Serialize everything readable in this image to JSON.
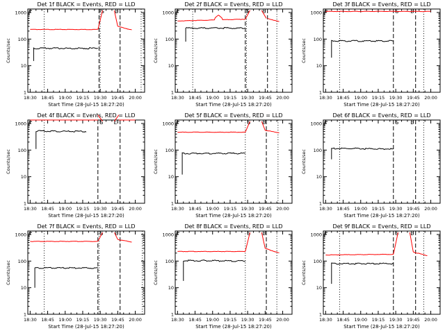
{
  "chart_data": [
    {
      "type": "line",
      "title": "Det 1f BLACK = Events, RED = LLD",
      "xlabel": "Start Time (28-Jul-15 18:27:20)",
      "ylabel": "Counts/sec",
      "yscale": "log",
      "ylim": [
        1,
        1000
      ],
      "xticks": [
        "18:30",
        "18:45",
        "19:00",
        "19:15",
        "19:30",
        "19:45",
        "20:00"
      ],
      "yticks": [
        "1",
        "10",
        "100",
        "1000"
      ],
      "markers": {
        "dotted": [
          "18:42",
          "19:30",
          "20:05"
        ],
        "dashed": [
          "19:29",
          "19:47"
        ],
        "S_at": "19:32",
        "E_at": "19:44"
      },
      "series": [
        {
          "name": "LLD",
          "color": "#ff0000",
          "segments": [
            {
              "x": [
                "18:30",
                "19:28"
              ],
              "y": [
                230,
                230
              ]
            },
            {
              "x": [
                "19:45",
                "19:57"
              ],
              "y": [
                300,
                220
              ]
            }
          ],
          "edge": {
            "x": [
              "19:28",
              "19:32"
            ],
            "y": [
              230,
              1200
            ]
          },
          "edge_end": {
            "x": [
              "19:42",
              "19:45"
            ],
            "y": [
              1200,
              300
            ]
          }
        },
        {
          "name": "Events",
          "color": "#000000",
          "segments": [
            {
              "x": [
                "18:33",
                "19:28"
              ],
              "y": [
                45,
                45
              ]
            }
          ],
          "start_drop": 15
        }
      ]
    },
    {
      "type": "line",
      "title": "Det 2f BLACK = Events, RED = LLD",
      "xlabel": "Start Time (28-Jul-15 18:27:20)",
      "ylabel": "Counts/sec",
      "yscale": "log",
      "ylim": [
        1,
        1000
      ],
      "xticks": [
        "18:30",
        "18:45",
        "19:00",
        "19:15",
        "19:30",
        "19:45",
        "20:00"
      ],
      "yticks": [
        "1",
        "10",
        "100",
        "1000"
      ],
      "markers": {
        "dotted": [
          "18:43",
          "19:29",
          "19:55"
        ],
        "dashed": [
          "19:28",
          "19:47"
        ],
        "S_at": "19:30",
        "E_at": "19:44"
      },
      "series": [
        {
          "name": "LLD",
          "color": "#ff0000",
          "segments": [
            {
              "x": [
                "18:30",
                "19:28"
              ],
              "y": [
                480,
                560
              ]
            },
            {
              "x": [
                "19:47",
                "19:57"
              ],
              "y": [
                600,
                450
              ]
            }
          ],
          "edge": {
            "x": [
              "19:28",
              "19:32"
            ],
            "y": [
              560,
              1200
            ]
          },
          "edge_end": {
            "x": [
              "19:42",
              "19:46"
            ],
            "y": [
              1200,
              600
            ]
          },
          "bump": {
            "x": "19:05",
            "y": 800
          }
        },
        {
          "name": "Events",
          "color": "#000000",
          "segments": [
            {
              "x": [
                "18:37",
                "19:28"
              ],
              "y": [
                260,
                260
              ]
            }
          ],
          "start_drop": 80
        }
      ]
    },
    {
      "type": "line",
      "title": "Det 3f BLACK = Events, RED = LLD",
      "xlabel": "Start Time (28-Jul-15 18:27:20)",
      "ylabel": "Counts/sec",
      "yscale": "log",
      "ylim": [
        1,
        1000
      ],
      "xticks": [
        "18:30",
        "18:45",
        "19:00",
        "19:15",
        "19:30",
        "19:45",
        "20:00"
      ],
      "yticks": [
        "1",
        "10",
        "100",
        "1000"
      ],
      "markers": {
        "dotted": [
          "18:42",
          "19:54"
        ],
        "dashed": [
          "19:28",
          "19:47"
        ],
        "S_at": "19:31",
        "E_at": "19:44"
      },
      "series": [
        {
          "name": "LLD",
          "color": "#ff0000",
          "segments": [
            {
              "x": [
                "18:30",
                "20:00"
              ],
              "y": [
                1100,
                1100
              ]
            }
          ]
        },
        {
          "name": "Events",
          "color": "#000000",
          "segments": [
            {
              "x": [
                "18:35",
                "19:28"
              ],
              "y": [
                85,
                85
              ]
            }
          ],
          "start_drop": 20
        }
      ]
    },
    {
      "type": "line",
      "title": "Det 4f BLACK = Events, RED = LLD",
      "xlabel": "Start Time (28-Jul-15 18:27:20)",
      "ylabel": "Counts/sec",
      "yscale": "log",
      "ylim": [
        1,
        1000
      ],
      "xticks": [
        "18:30",
        "18:45",
        "19:00",
        "19:15",
        "19:30",
        "19:45",
        "20:00"
      ],
      "yticks": [
        "1",
        "10",
        "100",
        "1000"
      ],
      "markers": {
        "dotted": [
          "18:42"
        ],
        "dashed": [
          "19:28",
          "19:47"
        ],
        "S_at": "19:31",
        "E_at": "19:43"
      },
      "series": [
        {
          "name": "LLD",
          "color": "#ff0000",
          "segments": [
            {
              "x": [
                "18:30",
                "19:28"
              ],
              "y": [
                2100,
                2100
              ]
            },
            {
              "x": [
                "19:46",
                "20:00"
              ],
              "y": [
                2100,
                2100
              ]
            }
          ],
          "edge": {
            "x": [
              "19:28",
              "19:32"
            ],
            "y": [
              2100,
              1200
            ]
          },
          "edge_end": {
            "x": [
              "19:42",
              "19:46"
            ],
            "y": [
              1200,
              2100
            ]
          }
        },
        {
          "name": "Events",
          "color": "#000000",
          "segments": [
            {
              "x": [
                "18:35",
                "19:18"
              ],
              "y": [
                520,
                500
              ]
            }
          ],
          "start_drop": 110
        }
      ]
    },
    {
      "type": "line",
      "title": "Det 5f BLACK = Events, RED = LLD",
      "xlabel": "Start Time (28-Jul-15 18:27:20)",
      "ylabel": "Counts/sec",
      "yscale": "log",
      "ylim": [
        1,
        1000
      ],
      "xticks": [
        "18:30",
        "18:45",
        "19:00",
        "19:15",
        "19:30",
        "19:45",
        "20:00"
      ],
      "yticks": [
        "1",
        "10",
        "100",
        "1000"
      ],
      "markers": {
        "dotted": [
          "19:28",
          "19:56"
        ],
        "dashed": [
          "19:46"
        ],
        "S_at": "19:31",
        "E_at": "19:44"
      },
      "series": [
        {
          "name": "LLD",
          "color": "#ff0000",
          "segments": [
            {
              "x": [
                "18:30",
                "19:28"
              ],
              "y": [
                470,
                470
              ]
            },
            {
              "x": [
                "19:45",
                "19:57"
              ],
              "y": [
                550,
                450
              ]
            }
          ],
          "edge": {
            "x": [
              "19:28",
              "19:32"
            ],
            "y": [
              470,
              1200
            ]
          },
          "edge_end": {
            "x": [
              "19:42",
              "19:45"
            ],
            "y": [
              1200,
              550
            ]
          }
        },
        {
          "name": "Events",
          "color": "#000000",
          "segments": [
            {
              "x": [
                "18:34",
                "19:28"
              ],
              "y": [
                75,
                75
              ]
            }
          ],
          "start_drop": 12
        }
      ]
    },
    {
      "type": "line",
      "title": "Det 6f BLACK = Events, RED = LLD",
      "xlabel": "Start Time (28-Jul-15 18:27:20)",
      "ylabel": "Counts/sec",
      "yscale": "log",
      "ylim": [
        1,
        1000
      ],
      "xticks": [
        "18:30",
        "18:45",
        "19:00",
        "19:15",
        "19:30",
        "19:45",
        "20:00"
      ],
      "yticks": [
        "1",
        "10",
        "100",
        "1000"
      ],
      "markers": {
        "dotted": [
          "18:42",
          "19:54"
        ],
        "dashed": [
          "19:28",
          "19:47"
        ],
        "S_at": "19:31",
        "E_at": "19:44"
      },
      "series": [
        {
          "name": "Events",
          "color": "#000000",
          "segments": [
            {
              "x": [
                "18:35",
                "19:28"
              ],
              "y": [
                115,
                110
              ]
            }
          ],
          "start_drop": 45
        }
      ]
    },
    {
      "type": "line",
      "title": "Det 7f BLACK = Events, RED = LLD",
      "xlabel": "Start Time (28-Jul-15 18:27:20)",
      "ylabel": "Counts/sec",
      "yscale": "log",
      "ylim": [
        1,
        1000
      ],
      "xticks": [
        "18:30",
        "18:45",
        "19:00",
        "19:15",
        "19:30",
        "19:45",
        "20:00"
      ],
      "yticks": [
        "1",
        "10",
        "100",
        "1000"
      ],
      "markers": {
        "dotted": [
          "18:42",
          "19:29",
          "20:06"
        ],
        "dashed": [
          "19:28",
          "19:47"
        ],
        "S_at": "19:31",
        "E_at": "19:44"
      },
      "series": [
        {
          "name": "LLD",
          "color": "#ff0000",
          "segments": [
            {
              "x": [
                "18:30",
                "19:28"
              ],
              "y": [
                550,
                550
              ]
            },
            {
              "x": [
                "19:45",
                "19:57"
              ],
              "y": [
                650,
                520
              ]
            }
          ],
          "edge": {
            "x": [
              "19:28",
              "19:32"
            ],
            "y": [
              550,
              1200
            ]
          },
          "edge_end": {
            "x": [
              "19:42",
              "19:45"
            ],
            "y": [
              1200,
              650
            ]
          }
        },
        {
          "name": "Events",
          "color": "#000000",
          "segments": [
            {
              "x": [
                "18:34",
                "19:28"
              ],
              "y": [
                55,
                55
              ]
            }
          ],
          "start_drop": 10
        }
      ]
    },
    {
      "type": "line",
      "title": "Det 8f BLACK = Events, RED = LLD",
      "xlabel": "Start Time (28-Jul-15 18:27:20)",
      "ylabel": "Counts/sec",
      "yscale": "log",
      "ylim": [
        1,
        1000
      ],
      "xticks": [
        "18:30",
        "18:45",
        "19:00",
        "19:15",
        "19:30",
        "19:45",
        "20:00"
      ],
      "yticks": [
        "1",
        "10",
        "100",
        "1000"
      ],
      "markers": {
        "dotted": [
          "19:28",
          "19:55"
        ],
        "dashed": [
          "19:46"
        ],
        "S_at": "19:31",
        "E_at": "19:44"
      },
      "series": [
        {
          "name": "LLD",
          "color": "#ff0000",
          "segments": [
            {
              "x": [
                "18:30",
                "19:28"
              ],
              "y": [
                230,
                230
              ]
            },
            {
              "x": [
                "19:45",
                "19:57"
              ],
              "y": [
                300,
                200
              ]
            }
          ],
          "edge": {
            "x": [
              "19:28",
              "19:32"
            ],
            "y": [
              230,
              1200
            ]
          },
          "edge_end": {
            "x": [
              "19:42",
              "19:45"
            ],
            "y": [
              1200,
              300
            ]
          }
        },
        {
          "name": "Events",
          "color": "#000000",
          "segments": [
            {
              "x": [
                "18:35",
                "19:28"
              ],
              "y": [
                105,
                100
              ]
            }
          ],
          "start_drop": 18
        }
      ]
    },
    {
      "type": "line",
      "title": "Det 9f BLACK = Events, RED = LLD",
      "xlabel": "Start Time (28-Jul-15 18:27:20)",
      "ylabel": "Counts/sec",
      "yscale": "log",
      "ylim": [
        1,
        1000
      ],
      "xticks": [
        "18:30",
        "18:45",
        "19:00",
        "19:15",
        "19:30",
        "19:45",
        "20:00"
      ],
      "yticks": [
        "1",
        "10",
        "100",
        "1000"
      ],
      "markers": {
        "dotted": [
          "18:42",
          "19:54"
        ],
        "dashed": [
          "19:28",
          "19:47"
        ],
        "S_at": "19:31",
        "E_at": "19:44"
      },
      "series": [
        {
          "name": "LLD",
          "color": "#ff0000",
          "segments": [
            {
              "x": [
                "18:30",
                "19:28"
              ],
              "y": [
                170,
                180
              ]
            },
            {
              "x": [
                "19:45",
                "19:57"
              ],
              "y": [
                220,
                160
              ]
            }
          ],
          "edge": {
            "x": [
              "19:28",
              "19:32"
            ],
            "y": [
              180,
              1200
            ]
          },
          "edge_end": {
            "x": [
              "19:42",
              "19:45"
            ],
            "y": [
              1200,
              220
            ]
          }
        },
        {
          "name": "Events",
          "color": "#000000",
          "segments": [
            {
              "x": [
                "18:35",
                "19:28"
              ],
              "y": [
                80,
                80
              ]
            }
          ],
          "start_drop": 14
        }
      ]
    }
  ]
}
